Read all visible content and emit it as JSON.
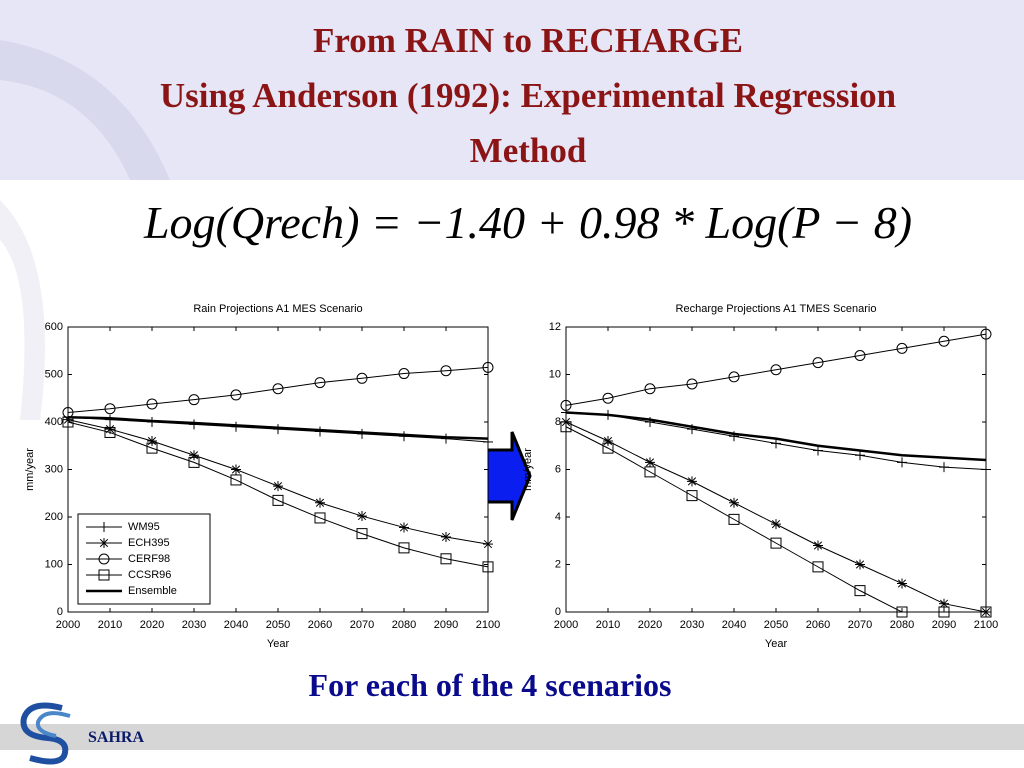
{
  "header": {
    "title_lines": [
      "From RAIN to RECHARGE",
      "Using Anderson (1992): Experimental Regression",
      "Method"
    ],
    "equation": "Log(Qrech) = −1.40 + 0.98 * Log(P − 8)"
  },
  "chart_data": [
    {
      "type": "line",
      "title": "Rain Projections A1 MES Scenario",
      "x_label": "Year",
      "y_label": "mm/year",
      "x": [
        2000,
        2010,
        2020,
        2030,
        2040,
        2050,
        2060,
        2070,
        2080,
        2090,
        2100
      ],
      "xlim": [
        2000,
        2100
      ],
      "xticks": [
        2000,
        2010,
        2020,
        2030,
        2040,
        2050,
        2060,
        2070,
        2080,
        2090,
        2100
      ],
      "ylim": [
        0,
        600
      ],
      "yticks": [
        0,
        100,
        200,
        300,
        400,
        500,
        600
      ],
      "grid": false,
      "legend": "lower left",
      "series": [
        {
          "name": "WM95",
          "color": "#000000",
          "marker": "plus",
          "line_width": 1,
          "values": [
            410,
            405,
            400,
            395,
            390,
            385,
            380,
            375,
            370,
            365,
            358
          ]
        },
        {
          "name": "ECH395",
          "color": "#000000",
          "marker": "star",
          "line_width": 1,
          "values": [
            405,
            385,
            360,
            330,
            300,
            265,
            230,
            202,
            178,
            158,
            143
          ]
        },
        {
          "name": "CERF98",
          "color": "#000000",
          "marker": "circle",
          "line_width": 1,
          "values": [
            420,
            428,
            438,
            447,
            457,
            470,
            483,
            492,
            502,
            508,
            515
          ]
        },
        {
          "name": "CCSR96",
          "color": "#000000",
          "marker": "square",
          "line_width": 1,
          "values": [
            400,
            378,
            345,
            315,
            278,
            235,
            198,
            165,
            135,
            112,
            95
          ]
        },
        {
          "name": "Ensemble",
          "color": "#000000",
          "marker": "none",
          "line_width": 2.5,
          "values": [
            410,
            408,
            402,
            398,
            393,
            388,
            383,
            378,
            373,
            368,
            365
          ]
        }
      ]
    },
    {
      "type": "line",
      "title": "Recharge Projections A1 TMES Scenario",
      "x_label": "Year",
      "y_label": "mm/year",
      "x": [
        2000,
        2010,
        2020,
        2030,
        2040,
        2050,
        2060,
        2070,
        2080,
        2090,
        2100
      ],
      "xlim": [
        2000,
        2100
      ],
      "xticks": [
        2000,
        2010,
        2020,
        2030,
        2040,
        2050,
        2060,
        2070,
        2080,
        2090,
        2100
      ],
      "ylim": [
        0,
        12
      ],
      "yticks": [
        0,
        2,
        4,
        6,
        8,
        10,
        12
      ],
      "grid": false,
      "series": [
        {
          "color": "#000000",
          "marker": "plus",
          "line_width": 1,
          "values": [
            8.4,
            8.3,
            8.0,
            7.7,
            7.4,
            7.1,
            6.8,
            6.6,
            6.3,
            6.1,
            6.0
          ]
        },
        {
          "color": "#000000",
          "marker": "star",
          "line_width": 1,
          "values": [
            8.0,
            7.2,
            6.3,
            5.5,
            4.6,
            3.7,
            2.8,
            2.0,
            1.2,
            0.35,
            0
          ]
        },
        {
          "color": "#000000",
          "marker": "circle",
          "line_width": 1,
          "values": [
            8.7,
            9.0,
            9.4,
            9.6,
            9.9,
            10.2,
            10.5,
            10.8,
            11.1,
            11.4,
            11.7
          ]
        },
        {
          "color": "#000000",
          "marker": "square",
          "line_width": 1,
          "values": [
            7.8,
            6.9,
            5.9,
            4.9,
            3.9,
            2.9,
            1.9,
            0.9,
            0,
            0,
            0
          ]
        },
        {
          "color": "#000000",
          "marker": "none",
          "line_width": 2.5,
          "values": [
            8.4,
            8.3,
            8.1,
            7.8,
            7.5,
            7.3,
            7.0,
            6.8,
            6.6,
            6.5,
            6.4
          ]
        }
      ]
    }
  ],
  "footer": {
    "caption": "For each of the 4 scenarios",
    "logo_text": "SAHRA"
  }
}
